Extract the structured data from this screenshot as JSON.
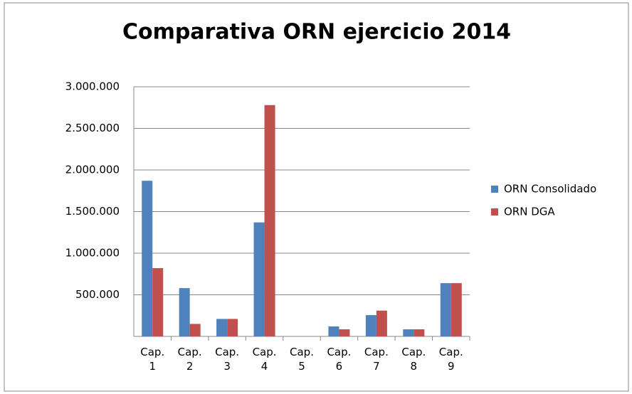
{
  "chart_data": {
    "type": "bar",
    "title": "Comparativa ORN ejercicio 2014",
    "categories": [
      "Cap. 1",
      "Cap. 2",
      "Cap. 3",
      "Cap. 4",
      "Cap. 5",
      "Cap. 6",
      "Cap. 7",
      "Cap. 8",
      "Cap. 9"
    ],
    "series": [
      {
        "name": "ORN Consolidado",
        "color": "#4f81bd",
        "values": [
          1870000,
          580000,
          210000,
          1370000,
          0,
          120000,
          256000,
          85000,
          640000
        ]
      },
      {
        "name": "ORN DGA",
        "color": "#c0504d",
        "values": [
          820000,
          150000,
          210000,
          2780000,
          0,
          85000,
          310000,
          85000,
          640000
        ]
      }
    ],
    "ylim": [
      0,
      3000000
    ],
    "yticks": [
      {
        "value": 500000,
        "label": "500.000"
      },
      {
        "value": 1000000,
        "label": "1.000.000"
      },
      {
        "value": 1500000,
        "label": "1.500.000"
      },
      {
        "value": 2000000,
        "label": "2.000.000"
      },
      {
        "value": 2500000,
        "label": "2.500.000"
      },
      {
        "value": 3000000,
        "label": "3.000.000"
      }
    ],
    "grid": true,
    "legend": "right"
  }
}
